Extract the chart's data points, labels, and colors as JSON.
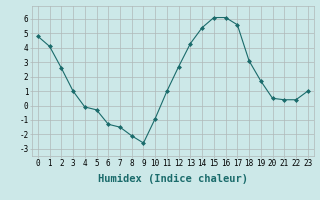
{
  "x": [
    0,
    1,
    2,
    3,
    4,
    5,
    6,
    7,
    8,
    9,
    10,
    11,
    12,
    13,
    14,
    15,
    16,
    17,
    18,
    19,
    20,
    21,
    22,
    23
  ],
  "y": [
    4.8,
    4.1,
    2.6,
    1.0,
    -0.1,
    -0.3,
    -1.3,
    -1.5,
    -2.1,
    -2.6,
    -0.9,
    1.0,
    2.7,
    4.3,
    5.4,
    6.1,
    6.1,
    5.6,
    3.1,
    1.7,
    0.5,
    0.4,
    0.4,
    1.0
  ],
  "line_color": "#1a6b6b",
  "marker": "D",
  "marker_size": 2,
  "bg_color": "#cce8e8",
  "grid_color": "#b0b8b8",
  "xlabel": "Humidex (Indice chaleur)",
  "ylim": [
    -3.5,
    6.9
  ],
  "xlim": [
    -0.5,
    23.5
  ],
  "yticks": [
    -3,
    -2,
    -1,
    0,
    1,
    2,
    3,
    4,
    5,
    6
  ],
  "xticks": [
    0,
    1,
    2,
    3,
    4,
    5,
    6,
    7,
    8,
    9,
    10,
    11,
    12,
    13,
    14,
    15,
    16,
    17,
    18,
    19,
    20,
    21,
    22,
    23
  ],
  "tick_fontsize": 5.5,
  "xlabel_fontsize": 7.5
}
